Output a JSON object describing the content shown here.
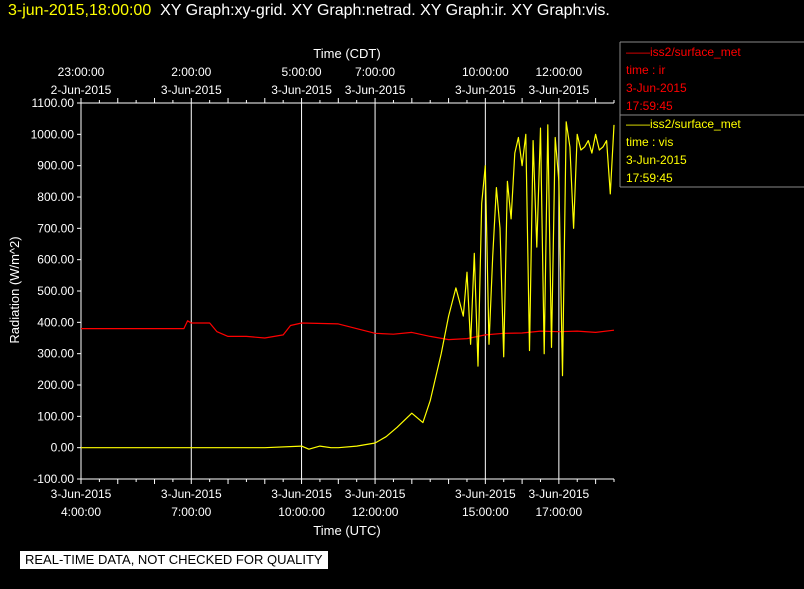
{
  "header": {
    "timestamp": "3-jun-2015,18:00:00",
    "graphs": "XY Graph:xy-grid.  XY Graph:netrad.  XY Graph:ir.  XY Graph:vis."
  },
  "quality_banner": "REAL-TIME DATA, NOT CHECKED FOR QUALITY",
  "colors": {
    "ir": "#ff0000",
    "vis": "#ffff00",
    "grid": "#ffffff",
    "background": "#000000"
  },
  "legend": [
    {
      "name": "iss2/surface_met",
      "label": "time : ir",
      "date": "3-Jun-2015",
      "time": "17:59:45",
      "color": "#ff0000"
    },
    {
      "name": "iss2/surface_met",
      "label": "time : vis",
      "date": "3-Jun-2015",
      "time": "17:59:45",
      "color": "#ffff00"
    }
  ],
  "chart_data": {
    "type": "line",
    "ylabel": "Radiation (W/m^2)",
    "xlabel_bottom": "Time (UTC)",
    "xlabel_top": "Time (CDT)",
    "ylim": [
      -100,
      1100
    ],
    "xlim_utc_hours": [
      4.0,
      18.5
    ],
    "y_ticks": [
      "-100.00",
      "0.00",
      "100.00",
      "200.00",
      "300.00",
      "400.00",
      "500.00",
      "600.00",
      "700.00",
      "800.00",
      "900.00",
      "1000.00",
      "1100.00"
    ],
    "x_ticks_bottom": [
      {
        "hour": 4,
        "date": "3-Jun-2015",
        "time": "4:00:00"
      },
      {
        "hour": 7,
        "date": "3-Jun-2015",
        "time": "7:00:00"
      },
      {
        "hour": 10,
        "date": "3-Jun-2015",
        "time": "10:00:00"
      },
      {
        "hour": 12,
        "date": "3-Jun-2015",
        "time": "12:00:00"
      },
      {
        "hour": 15,
        "date": "3-Jun-2015",
        "time": "15:00:00"
      },
      {
        "hour": 17,
        "date": "3-Jun-2015",
        "time": "17:00:00"
      }
    ],
    "x_ticks_top": [
      {
        "hour": 4,
        "time": "23:00:00",
        "date": "2-Jun-2015"
      },
      {
        "hour": 7,
        "time": "2:00:00",
        "date": "3-Jun-2015"
      },
      {
        "hour": 10,
        "time": "5:00:00",
        "date": "3-Jun-2015"
      },
      {
        "hour": 12,
        "time": "7:00:00",
        "date": "3-Jun-2015"
      },
      {
        "hour": 15,
        "time": "10:00:00",
        "date": "3-Jun-2015"
      },
      {
        "hour": 17,
        "time": "12:00:00",
        "date": "3-Jun-2015"
      }
    ],
    "grid": true,
    "series": [
      {
        "name": "ir",
        "x": [
          4.0,
          5.0,
          6.0,
          6.8,
          6.9,
          7.0,
          7.5,
          7.7,
          8.0,
          8.5,
          9.0,
          9.5,
          9.7,
          10.0,
          11.0,
          12.0,
          12.5,
          13.0,
          13.5,
          14.0,
          14.5,
          15.0,
          15.5,
          16.0,
          16.5,
          17.0,
          17.5,
          18.0,
          18.5
        ],
        "y": [
          380,
          380,
          380,
          380,
          405,
          398,
          398,
          370,
          355,
          355,
          350,
          360,
          390,
          398,
          395,
          365,
          362,
          368,
          355,
          345,
          348,
          360,
          365,
          366,
          372,
          370,
          372,
          368,
          375
        ]
      },
      {
        "name": "vis",
        "x": [
          4.0,
          5.0,
          6.0,
          7.0,
          8.0,
          9.0,
          10.0,
          10.2,
          10.5,
          10.8,
          11.0,
          11.5,
          12.0,
          12.3,
          12.6,
          13.0,
          13.3,
          13.5,
          13.8,
          14.0,
          14.2,
          14.4,
          14.5,
          14.6,
          14.7,
          14.8,
          14.9,
          15.0,
          15.1,
          15.2,
          15.3,
          15.4,
          15.5,
          15.6,
          15.7,
          15.8,
          15.9,
          16.0,
          16.1,
          16.2,
          16.3,
          16.4,
          16.5,
          16.6,
          16.7,
          16.8,
          16.9,
          17.0,
          17.1,
          17.2,
          17.3,
          17.4,
          17.5,
          17.6,
          17.7,
          17.8,
          17.9,
          18.0,
          18.1,
          18.2,
          18.3,
          18.4,
          18.5
        ],
        "y": [
          0,
          0,
          0,
          0,
          0,
          0,
          5,
          -5,
          5,
          0,
          0,
          5,
          15,
          35,
          65,
          110,
          80,
          150,
          300,
          420,
          510,
          420,
          560,
          330,
          620,
          260,
          780,
          900,
          330,
          610,
          830,
          700,
          290,
          850,
          730,
          940,
          990,
          900,
          1000,
          310,
          980,
          640,
          1020,
          300,
          1030,
          320,
          990,
          850,
          230,
          1040,
          960,
          700,
          1000,
          950,
          960,
          980,
          940,
          1000,
          950,
          960,
          980,
          810,
          1030
        ]
      }
    ]
  }
}
